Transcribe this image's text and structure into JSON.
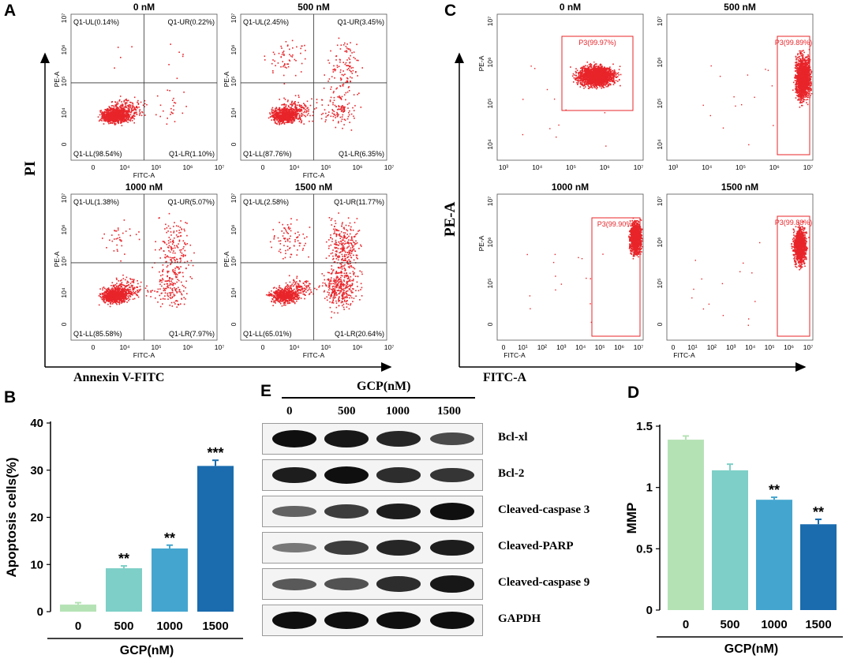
{
  "panel_labels": {
    "A": "A",
    "B": "B",
    "C": "C",
    "D": "D",
    "E": "E"
  },
  "panel_a": {
    "y_axis_label": "PI",
    "x_axis_label": "Annexin V-FITC",
    "plots": [
      {
        "title": "0 nM",
        "ul": "Q1-UL(0.14%)",
        "ur": "Q1-UR(0.22%)",
        "ll": "Q1-LL(98.54%)",
        "lr": "Q1-LR(1.10%)"
      },
      {
        "title": "500 nM",
        "ul": "Q1-UL(2.45%)",
        "ur": "Q1-UR(3.45%)",
        "ll": "Q1-LL(87.76%)",
        "lr": "Q1-LR(6.35%)"
      },
      {
        "title": "1000 nM",
        "ul": "Q1-UL(1.38%)",
        "ur": "Q1-UR(5.07%)",
        "ll": "Q1-LL(85.58%)",
        "lr": "Q1-LR(7.97%)"
      },
      {
        "title": "1500 nM",
        "ul": "Q1-UL(2.58%)",
        "ur": "Q1-UR(11.77%)",
        "ll": "Q1-LL(65.01%)",
        "lr": "Q1-LR(20.64%)"
      }
    ],
    "small_x_label": "FITC-A",
    "small_y_label": "PE-A"
  },
  "panel_c": {
    "y_axis_label": "PE-A",
    "x_axis_label": "FITC-A",
    "plots": [
      {
        "title": "0 nM",
        "gate": "P3(99.97%)"
      },
      {
        "title": "500 nM",
        "gate": "P3(99.89%)"
      },
      {
        "title": "1000 nM",
        "gate": "P3(99.90%)"
      },
      {
        "title": "1500 nM",
        "gate": "P3(99.88%)"
      }
    ],
    "small_x_label": "FITC-A",
    "small_y_label": "PE-A"
  },
  "panel_e": {
    "header": "GCP(nM)",
    "lanes": [
      "0",
      "500",
      "1000",
      "1500"
    ],
    "bands": [
      {
        "label": "Bcl-xl",
        "intensity": [
          1.0,
          0.95,
          0.85,
          0.6
        ]
      },
      {
        "label": "Bcl-2",
        "intensity": [
          0.9,
          1.0,
          0.8,
          0.75
        ]
      },
      {
        "label": "Cleaved-caspase 3",
        "intensity": [
          0.45,
          0.7,
          0.9,
          1.0
        ]
      },
      {
        "label": "Cleaved-PARP",
        "intensity": [
          0.3,
          0.7,
          0.85,
          0.9
        ]
      },
      {
        "label": "Cleaved-caspase 9",
        "intensity": [
          0.5,
          0.55,
          0.8,
          0.95
        ]
      },
      {
        "label": "GAPDH",
        "intensity": [
          1.0,
          1.0,
          1.0,
          1.0
        ]
      }
    ]
  },
  "chart_data": [
    {
      "panel": "B",
      "type": "bar",
      "categories": [
        "0",
        "500",
        "1000",
        "1500"
      ],
      "values": [
        1.5,
        9.2,
        13.4,
        30.9
      ],
      "errors": [
        0.4,
        0.5,
        0.7,
        1.2
      ],
      "significance": [
        "",
        "**",
        "**",
        "***"
      ],
      "colors": [
        "#b5e2b5",
        "#7ecfc7",
        "#44a6cf",
        "#1a6cae"
      ],
      "ylabel": "Apoptosis cells(%)",
      "xlabel": "GCP(nM)",
      "ylim": [
        0,
        40
      ],
      "yticks": [
        "0",
        "10",
        "20",
        "30",
        "40"
      ]
    },
    {
      "panel": "D",
      "type": "bar",
      "categories": [
        "0",
        "500",
        "1000",
        "1500"
      ],
      "values": [
        1.39,
        1.14,
        0.9,
        0.7
      ],
      "errors": [
        0.03,
        0.05,
        0.02,
        0.04
      ],
      "significance": [
        "",
        "",
        "**",
        "**"
      ],
      "colors": [
        "#b5e2b5",
        "#7ecfc7",
        "#44a6cf",
        "#1a6cae"
      ],
      "ylabel": "MMP",
      "xlabel": "GCP(nM)",
      "ylim": [
        0,
        1.5
      ],
      "yticks": [
        "0",
        "0.5",
        "1",
        "1.5"
      ]
    }
  ]
}
